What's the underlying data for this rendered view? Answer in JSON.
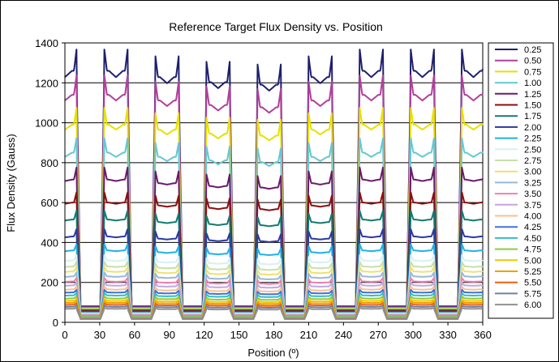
{
  "chart_data": {
    "type": "line",
    "title": "Reference Target Flux Density vs. Position",
    "xlabel": "Position (º)",
    "ylabel": "Flux Density (Gauss)",
    "xlim": [
      0,
      360
    ],
    "ylim": [
      0,
      1400
    ],
    "xticks": [
      0,
      30,
      60,
      90,
      120,
      150,
      180,
      210,
      240,
      270,
      300,
      330,
      360
    ],
    "yticks": [
      0,
      200,
      400,
      600,
      800,
      1000,
      1200,
      1400
    ],
    "grid": "horizontal",
    "legend_position": "right",
    "pulse_centers": [
      0,
      44,
      88,
      132,
      176,
      220,
      264,
      308,
      352
    ],
    "pulse_peak_factor": [
      1.0,
      1.0,
      0.975,
      0.955,
      0.945,
      0.975,
      1.0,
      1.0,
      1.0
    ],
    "series": [
      {
        "name": "0.25",
        "color": "#1f1f6e",
        "high": 1260,
        "low": 80
      },
      {
        "name": "0.50",
        "color": "#b0409a",
        "high": 1140,
        "low": 75
      },
      {
        "name": "0.75",
        "color": "#e8e000",
        "high": 990,
        "low": 70
      },
      {
        "name": "1.00",
        "color": "#66c8d0",
        "high": 850,
        "low": 65
      },
      {
        "name": "1.25",
        "color": "#6a1a6a",
        "high": 715,
        "low": 60
      },
      {
        "name": "1.50",
        "color": "#8a1010",
        "high": 600,
        "low": 57
      },
      {
        "name": "1.75",
        "color": "#137a72",
        "high": 515,
        "low": 54
      },
      {
        "name": "2.00",
        "color": "#2a3aa0",
        "high": 430,
        "low": 51
      },
      {
        "name": "2.25",
        "color": "#22b0e8",
        "high": 360,
        "low": 48
      },
      {
        "name": "2.50",
        "color": "#d8f0f0",
        "high": 310,
        "low": 45
      },
      {
        "name": "2.75",
        "color": "#c8e0a8",
        "high": 280,
        "low": 42
      },
      {
        "name": "3.00",
        "color": "#f0e070",
        "high": 255,
        "low": 40
      },
      {
        "name": "3.25",
        "color": "#9ab8d8",
        "high": 230,
        "low": 38
      },
      {
        "name": "3.50",
        "color": "#f080b0",
        "high": 205,
        "low": 36
      },
      {
        "name": "3.75",
        "color": "#c0a8e0",
        "high": 185,
        "low": 34
      },
      {
        "name": "4.00",
        "color": "#f8c090",
        "high": 165,
        "low": 32
      },
      {
        "name": "4.25",
        "color": "#4070e0",
        "high": 150,
        "low": 30
      },
      {
        "name": "4.50",
        "color": "#30c0c0",
        "high": 135,
        "low": 28
      },
      {
        "name": "4.75",
        "color": "#90c840",
        "high": 120,
        "low": 26
      },
      {
        "name": "5.00",
        "color": "#f0c800",
        "high": 108,
        "low": 24
      },
      {
        "name": "5.25",
        "color": "#f0a000",
        "high": 98,
        "low": 22
      },
      {
        "name": "5.50",
        "color": "#f06010",
        "high": 88,
        "low": 20
      },
      {
        "name": "5.75",
        "color": "#7080a8",
        "high": 78,
        "low": 18
      },
      {
        "name": "6.00",
        "color": "#909090",
        "high": 68,
        "low": 16
      }
    ]
  }
}
